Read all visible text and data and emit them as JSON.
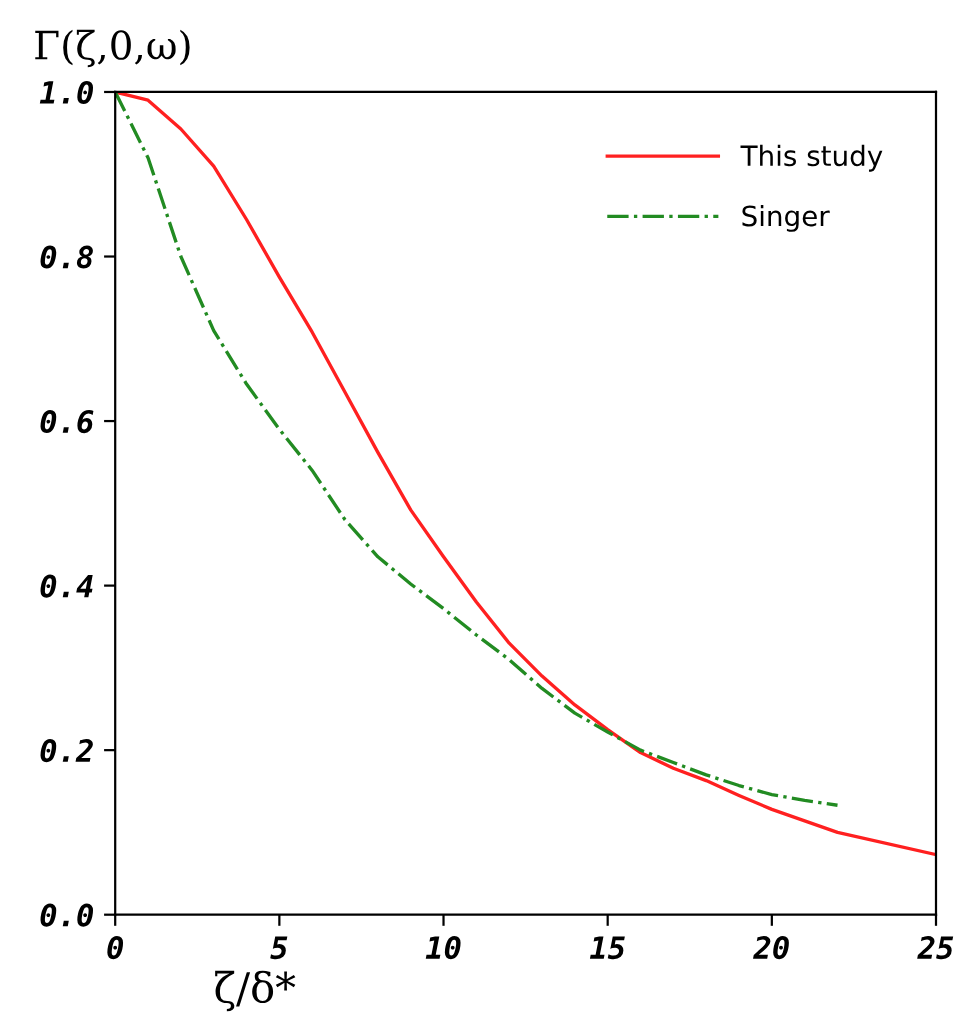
{
  "chart_data": {
    "type": "line",
    "ylabel": "Γ(ζ,0,ω)",
    "xlabel": "ζ/δ*",
    "xlim": [
      0,
      25
    ],
    "xticks": [
      0,
      5,
      10,
      15,
      20,
      25
    ],
    "ylim": [
      0.0,
      1.0
    ],
    "yticks": [
      {
        "value": 0,
        "label": "0.0"
      },
      0.2,
      0.4,
      0.6,
      0.8,
      {
        "value": 1,
        "label": "1.0"
      }
    ],
    "legend": "top right",
    "grid": false,
    "series": [
      {
        "name": "This study",
        "color": "#ff2020",
        "line_style": "solid",
        "x": [
          0,
          1,
          2,
          3,
          4,
          5,
          6,
          7,
          8,
          9,
          10,
          11,
          12,
          13,
          14,
          15,
          16,
          17,
          18,
          19,
          20,
          22,
          25
        ],
        "values": [
          1.0,
          0.99,
          0.955,
          0.91,
          0.845,
          0.775,
          0.708,
          0.635,
          0.562,
          0.492,
          0.435,
          0.38,
          0.33,
          0.29,
          0.255,
          0.225,
          0.197,
          0.178,
          0.163,
          0.145,
          0.128,
          0.1,
          0.073
        ]
      },
      {
        "name": "Singer",
        "color": "#228b22",
        "line_style": "dashdot",
        "x": [
          0,
          1,
          2,
          3,
          4,
          5,
          6,
          7,
          8,
          9,
          10,
          11,
          12,
          13,
          14,
          15,
          16,
          17,
          18,
          19,
          20,
          21,
          22
        ],
        "values": [
          1.0,
          0.92,
          0.8,
          0.71,
          0.645,
          0.59,
          0.54,
          0.48,
          0.435,
          0.402,
          0.372,
          0.34,
          0.31,
          0.275,
          0.245,
          0.222,
          0.2,
          0.185,
          0.17,
          0.157,
          0.146,
          0.139,
          0.133
        ]
      }
    ]
  }
}
